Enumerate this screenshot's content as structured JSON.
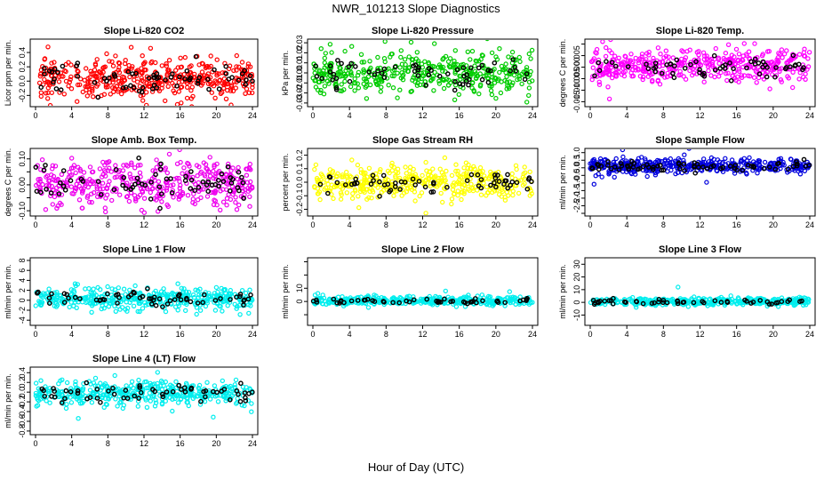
{
  "figure": {
    "title": "NWR_101213  Slope Diagnostics",
    "xlabel": "Hour of Day (UTC)"
  },
  "chart_data": [
    {
      "type": "scatter",
      "title": "Slope Li-820 CO2",
      "ylabel": "Licor ppm per min.",
      "color": "#ff0000",
      "xlim": [
        0,
        24
      ],
      "xticks": [
        0,
        4,
        8,
        12,
        16,
        20,
        24
      ],
      "ylim": [
        -0.32,
        0.55
      ],
      "yticks": [
        -0.2,
        0.0,
        0.2,
        0.4
      ],
      "ytick_labels": [
        "-0.2",
        "0.0",
        "0.2",
        "0.4"
      ],
      "center": 0.05,
      "spread": 0.14,
      "n": 420,
      "nblack": 70,
      "seed": 11
    },
    {
      "type": "scatter",
      "title": "Slope Li-820 Pressure",
      "ylabel": "kPa per min.",
      "color": "#00cc00",
      "xlim": [
        0,
        24
      ],
      "xticks": [
        0,
        4,
        8,
        12,
        16,
        20,
        24
      ],
      "ylim": [
        -0.031,
        0.031
      ],
      "yticks": [
        -0.03,
        -0.02,
        -0.01,
        0.0,
        0.01,
        0.02,
        0.03
      ],
      "ytick_labels": [
        "-0.03",
        "-0.02",
        "-0.01",
        "0.00",
        "0.01",
        "0.02",
        "0.03"
      ],
      "center": 0.0,
      "spread": 0.01,
      "n": 420,
      "nblack": 60,
      "seed": 23
    },
    {
      "type": "scatter",
      "title": "Slope Li-820 Temp.",
      "ylabel": "degrees C per min.",
      "color": "#ff00ff",
      "xlim": [
        0,
        24
      ],
      "xticks": [
        0,
        4,
        8,
        12,
        16,
        20,
        24
      ],
      "ylim": [
        -0.016,
        0.011
      ],
      "yticks": [
        -0.015,
        -0.01,
        -0.005,
        0.0,
        0.005,
        0.01
      ],
      "ytick_labels": [
        "-0.015",
        "-0.010",
        "-0.005",
        "0.000",
        "0.005",
        ""
      ],
      "center": 0.0005,
      "spread": 0.0035,
      "n": 420,
      "nblack": 60,
      "seed": 37
    },
    {
      "type": "scatter",
      "title": "Slope Amb. Box Temp.",
      "ylabel": "degrees C per min.",
      "color": "#ee00ee",
      "xlim": [
        0,
        24
      ],
      "xticks": [
        0,
        4,
        8,
        12,
        16,
        20,
        24
      ],
      "ylim": [
        -0.11,
        0.13
      ],
      "yticks": [
        -0.1,
        -0.05,
        0.0,
        0.05,
        0.1
      ],
      "ytick_labels": [
        "-0.10",
        "",
        "0.00",
        "",
        "0.10"
      ],
      "center": 0.0,
      "spread": 0.045,
      "n": 420,
      "nblack": 70,
      "seed": 41
    },
    {
      "type": "scatter",
      "title": "Slope Gas Stream RH",
      "ylabel": "percent per min.",
      "color": "#ffff00",
      "xlim": [
        0,
        24
      ],
      "xticks": [
        0,
        4,
        8,
        12,
        16,
        20,
        24
      ],
      "ylim": [
        -0.23,
        0.23
      ],
      "yticks": [
        -0.2,
        -0.1,
        0.0,
        0.1,
        0.2
      ],
      "ytick_labels": [
        "-0.2",
        "-0.1",
        "0.0",
        "0.1",
        "0.2"
      ],
      "center": 0.0,
      "spread": 0.06,
      "n": 420,
      "nblack": 60,
      "seed": 53
    },
    {
      "type": "scatter",
      "title": "Slope Sample Flow",
      "ylabel": "ml/min per min.",
      "color": "#0000dd",
      "xlim": [
        0,
        24
      ],
      "xticks": [
        0,
        4,
        8,
        12,
        16,
        20,
        24
      ],
      "ylim": [
        -3.0,
        1.1
      ],
      "yticks": [
        -3.0,
        -2.5,
        -2.0,
        -1.5,
        -1.0,
        -0.5,
        0.0,
        0.5,
        1.0
      ],
      "ytick_labels": [
        "",
        "-2.5",
        "-2.0",
        "-1.5",
        "-1.0",
        "-0.5",
        "0.0",
        "0.5",
        "1.0"
      ],
      "center": 0.1,
      "spread": 0.22,
      "n": 420,
      "nblack": 70,
      "seed": 67
    },
    {
      "type": "scatter",
      "title": "Slope Line 1 Flow",
      "ylabel": "ml/min per min.",
      "color": "#00eeee",
      "xlim": [
        0,
        24
      ],
      "xticks": [
        0,
        4,
        8,
        12,
        16,
        20,
        24
      ],
      "ylim": [
        -4.5,
        8
      ],
      "yticks": [
        -4,
        -2,
        0,
        2,
        4,
        6,
        8
      ],
      "ytick_labels": [
        "-4",
        "-2",
        "0",
        "2",
        "4",
        "6",
        "8"
      ],
      "center": 0.3,
      "spread": 1.0,
      "n": 420,
      "nblack": 60,
      "seed": 71
    },
    {
      "type": "scatter",
      "title": "Slope Line 2 Flow",
      "ylabel": "ml/min per min.",
      "color": "#00eeee",
      "xlim": [
        0,
        24
      ],
      "xticks": [
        0,
        4,
        8,
        12,
        16,
        20,
        24
      ],
      "ylim": [
        -16,
        31
      ],
      "yticks": [
        -10,
        0,
        10,
        20,
        30
      ],
      "ytick_labels": [
        "",
        "0",
        "10",
        "",
        ""
      ],
      "center": 0.5,
      "spread": 1.5,
      "n": 420,
      "nblack": 50,
      "seed": 83
    },
    {
      "type": "scatter",
      "title": "Slope Line 3 Flow",
      "ylabel": "ml/min per min.",
      "color": "#00eeee",
      "xlim": [
        0,
        24
      ],
      "xticks": [
        0,
        4,
        8,
        12,
        16,
        20,
        24
      ],
      "ylim": [
        -16,
        33
      ],
      "yticks": [
        -10,
        0,
        10,
        20,
        30
      ],
      "ytick_labels": [
        "-10",
        "0",
        "10",
        "20",
        "30"
      ],
      "center": 0.5,
      "spread": 1.5,
      "n": 420,
      "nblack": 50,
      "seed": 97
    },
    {
      "type": "scatter",
      "title": "Slope Line 4 (LT) Flow",
      "ylabel": "ml/min per min.",
      "color": "#00eeee",
      "xlim": [
        0,
        24
      ],
      "xticks": [
        0,
        4,
        8,
        12,
        16,
        20,
        24
      ],
      "ylim": [
        -0.82,
        0.46
      ],
      "yticks": [
        -0.8,
        -0.6,
        -0.4,
        -0.2,
        0.0,
        0.2,
        0.4
      ],
      "ytick_labels": [
        "-0.8",
        "-0.6",
        "-0.4",
        "-0.2",
        "0.0",
        "0.2",
        "0.4"
      ],
      "center": -0.02,
      "spread": 0.12,
      "n": 420,
      "nblack": 60,
      "seed": 101
    }
  ]
}
